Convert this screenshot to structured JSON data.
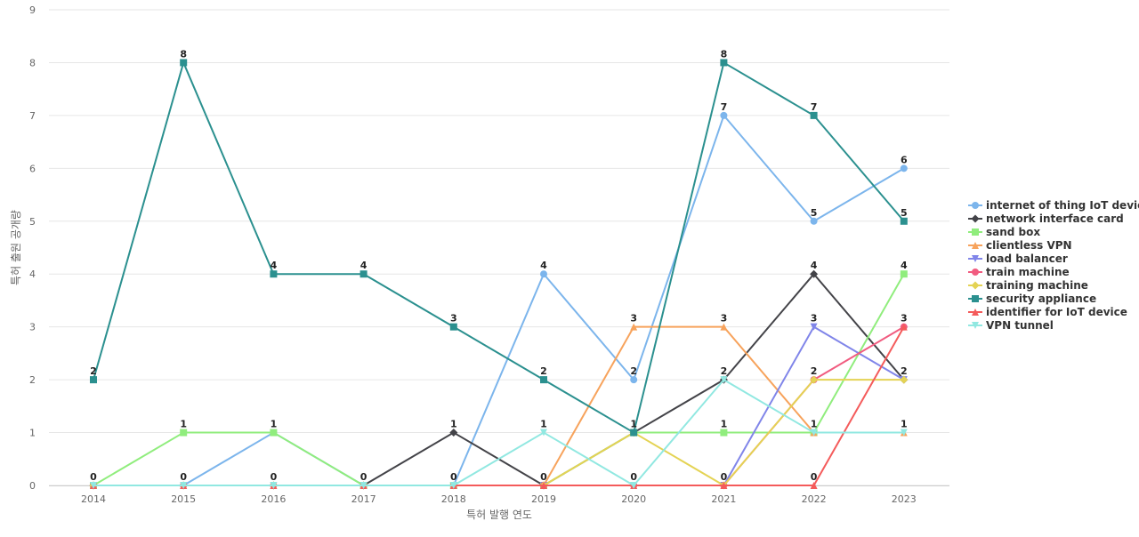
{
  "chart_data": {
    "type": "line",
    "title": "",
    "xlabel": "특허 발행 연도",
    "ylabel": "특허 출원 공개량",
    "x": [
      "2014",
      "2015",
      "2016",
      "2017",
      "2018",
      "2019",
      "2020",
      "2021",
      "2022",
      "2023"
    ],
    "ylim": [
      0,
      9
    ],
    "yticks": [
      0,
      1,
      2,
      3,
      4,
      5,
      6,
      7,
      8,
      9
    ],
    "grid": true,
    "legend_position": "right",
    "series": [
      {
        "name": "internet of thing IoT device",
        "color": "#7cb5ec",
        "marker": "circle",
        "values": [
          0,
          0,
          1,
          0,
          0,
          4,
          2,
          7,
          5,
          6
        ],
        "show_labels": true
      },
      {
        "name": "network interface card",
        "color": "#434348",
        "marker": "diamond",
        "values": [
          0,
          0,
          0,
          0,
          1,
          0,
          1,
          2,
          4,
          2
        ],
        "show_labels": true
      },
      {
        "name": "sand box",
        "color": "#90ed7d",
        "marker": "square",
        "values": [
          0,
          1,
          1,
          0,
          0,
          0,
          1,
          1,
          1,
          4
        ],
        "show_labels": true
      },
      {
        "name": "clientless VPN",
        "color": "#f7a35c",
        "marker": "triangle",
        "values": [
          0,
          0,
          0,
          0,
          0,
          0,
          3,
          3,
          1,
          1
        ],
        "show_labels": true
      },
      {
        "name": "load balancer",
        "color": "#8085e9",
        "marker": "triangle-down",
        "values": [
          0,
          0,
          0,
          0,
          0,
          0,
          0,
          0,
          3,
          2
        ],
        "show_labels": true
      },
      {
        "name": "train machine",
        "color": "#f15c80",
        "marker": "circle",
        "values": [
          0,
          0,
          0,
          0,
          0,
          0,
          0,
          0,
          2,
          3
        ],
        "show_labels": true
      },
      {
        "name": "training machine",
        "color": "#e4d354",
        "marker": "diamond",
        "values": [
          0,
          0,
          0,
          0,
          0,
          0,
          1,
          0,
          2,
          2
        ],
        "show_labels": true
      },
      {
        "name": "security appliance",
        "color": "#2b908f",
        "marker": "square",
        "values": [
          2,
          8,
          4,
          4,
          3,
          2,
          1,
          8,
          7,
          5
        ],
        "show_labels": true
      },
      {
        "name": "identifier for IoT device",
        "color": "#f45b5b",
        "marker": "triangle",
        "values": [
          0,
          0,
          0,
          0,
          0,
          0,
          0,
          0,
          0,
          3
        ],
        "show_labels": true
      },
      {
        "name": "VPN tunnel",
        "color": "#91e8e1",
        "marker": "triangle-down",
        "values": [
          0,
          0,
          0,
          0,
          0,
          1,
          0,
          2,
          1,
          1
        ],
        "show_labels": true
      }
    ]
  }
}
